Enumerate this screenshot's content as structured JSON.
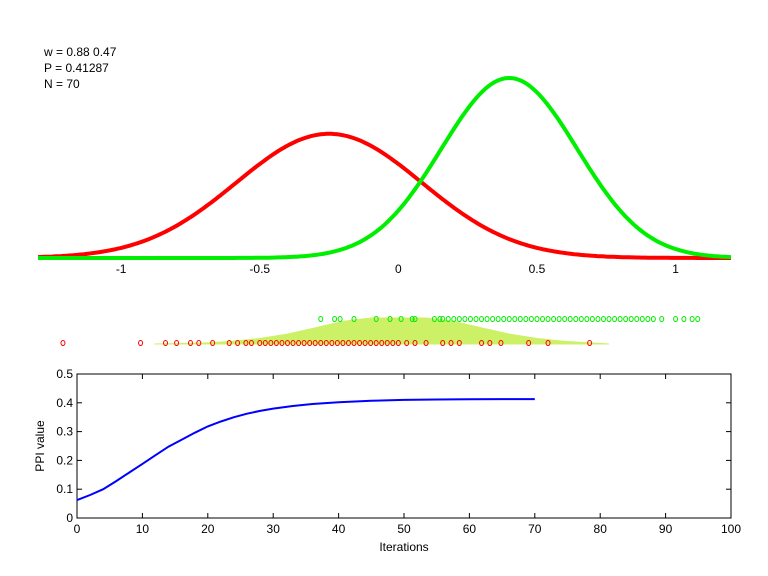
{
  "info": {
    "w_line": "w = 0.88  0.47",
    "p_line": "P = 0.41287",
    "n_line": "N = 70"
  },
  "chart_data": [
    {
      "type": "line",
      "xlim": [
        -1.3,
        1.2
      ],
      "x_ticks": [
        "-1",
        "-0.5",
        "0",
        "0.5",
        "1"
      ],
      "x_tick_values": [
        -1,
        -0.5,
        0,
        0.5,
        1
      ],
      "y_ticks": [],
      "grid": false,
      "series": [
        {
          "color": "#ff0000",
          "shape": "gaussian",
          "mean": -0.25,
          "sd": 0.335,
          "relative_peak": 0.69
        },
        {
          "color": "#00ee00",
          "shape": "gaussian",
          "mean": 0.4,
          "sd": 0.245,
          "relative_peak": 1.0
        }
      ]
    },
    {
      "type": "scatter",
      "xlim": [
        -1.3,
        1.2
      ],
      "area": {
        "color": "#ccf066",
        "x": [
          -0.88,
          -0.8,
          -0.7,
          -0.6,
          -0.5,
          -0.4,
          -0.3,
          -0.2,
          -0.1,
          0,
          0.1,
          0.2,
          0.3,
          0.4,
          0.5,
          0.6,
          0.7,
          0.76
        ],
        "y": [
          0.0,
          0.014,
          0.04,
          0.1,
          0.21,
          0.38,
          0.62,
          0.87,
          1,
          1,
          1,
          0.87,
          0.62,
          0.38,
          0.21,
          0.1,
          0.04,
          0.0
        ]
      },
      "series": [
        {
          "color": "#00ee00",
          "row": "top",
          "x": [
            -0.28,
            -0.23,
            -0.21,
            -0.16,
            -0.08,
            -0.03,
            0.01,
            0.05,
            0.06,
            0.13,
            0.15,
            0.16,
            0.18,
            0.2,
            0.22,
            0.24,
            0.26,
            0.28,
            0.3,
            0.32,
            0.34,
            0.36,
            0.38,
            0.4,
            0.42,
            0.44,
            0.46,
            0.48,
            0.5,
            0.52,
            0.54,
            0.56,
            0.58,
            0.6,
            0.62,
            0.64,
            0.66,
            0.68,
            0.7,
            0.72,
            0.74,
            0.76,
            0.78,
            0.8,
            0.82,
            0.84,
            0.86,
            0.88,
            0.9,
            0.92,
            0.95,
            1.0,
            1.03,
            1.06,
            1.08
          ]
        },
        {
          "color": "#ff0000",
          "row": "bottom",
          "x": [
            -1.21,
            -0.93,
            -0.84,
            -0.8,
            -0.75,
            -0.72,
            -0.67,
            -0.61,
            -0.58,
            -0.55,
            -0.53,
            -0.5,
            -0.48,
            -0.46,
            -0.44,
            -0.42,
            -0.4,
            -0.38,
            -0.36,
            -0.34,
            -0.32,
            -0.3,
            -0.28,
            -0.26,
            -0.24,
            -0.22,
            -0.2,
            -0.18,
            -0.16,
            -0.14,
            -0.12,
            -0.1,
            -0.08,
            -0.06,
            -0.04,
            -0.02,
            0.0,
            0.03,
            0.06,
            0.1,
            0.16,
            0.19,
            0.22,
            0.3,
            0.33,
            0.37,
            0.47,
            0.54,
            0.69
          ]
        }
      ]
    },
    {
      "type": "line",
      "xlabel": "Iterations",
      "ylabel": "PPI value",
      "xlim": [
        0,
        100
      ],
      "ylim": [
        0,
        0.5
      ],
      "x_ticks": [
        "0",
        "10",
        "20",
        "30",
        "40",
        "50",
        "60",
        "70",
        "80",
        "90",
        "100"
      ],
      "y_ticks": [
        "0",
        "0.1",
        "0.2",
        "0.3",
        "0.4",
        "0.5"
      ],
      "grid": false,
      "series": [
        {
          "color": "#0000ff",
          "x": [
            0,
            2,
            4,
            6,
            8,
            10,
            12,
            14,
            16,
            18,
            20,
            22,
            24,
            26,
            28,
            30,
            33,
            36,
            40,
            45,
            50,
            55,
            60,
            65,
            70
          ],
          "y": [
            0.062,
            0.08,
            0.1,
            0.128,
            0.158,
            0.188,
            0.218,
            0.248,
            0.272,
            0.296,
            0.318,
            0.335,
            0.35,
            0.362,
            0.372,
            0.38,
            0.389,
            0.396,
            0.402,
            0.407,
            0.41,
            0.4115,
            0.4123,
            0.4127,
            0.41287
          ]
        }
      ]
    }
  ]
}
